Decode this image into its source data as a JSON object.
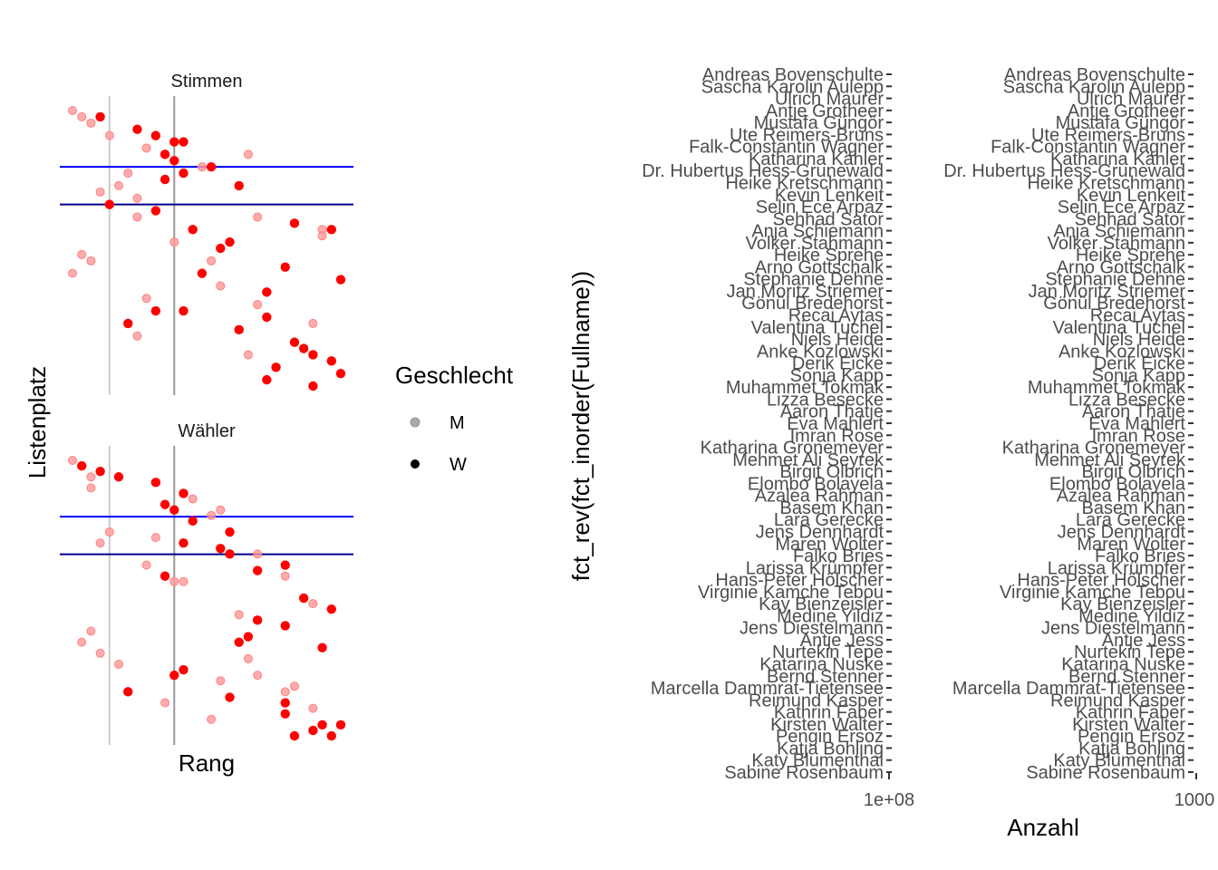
{
  "colors": {
    "M": "#ff9999",
    "W": "#ff0000",
    "line1": "#0000ff",
    "line2": "#00008b",
    "vline1": "#cccccc",
    "vline2": "#999999"
  },
  "scatter": {
    "xlabel": "Rang",
    "ylabel": "Listenplatz",
    "legend": {
      "title": "Geschlecht",
      "items": [
        {
          "label": "M",
          "key": "M"
        },
        {
          "label": "W",
          "key": "W"
        }
      ]
    },
    "panels": [
      {
        "strip": "Stimmen",
        "points": [
          {
            "x": 1,
            "y": 1,
            "g": "M"
          },
          {
            "x": 2,
            "y": 2,
            "g": "M"
          },
          {
            "x": 4,
            "y": 2,
            "g": "W"
          },
          {
            "x": 3,
            "y": 3,
            "g": "M"
          },
          {
            "x": 8,
            "y": 4,
            "g": "W"
          },
          {
            "x": 5,
            "y": 5,
            "g": "M"
          },
          {
            "x": 10,
            "y": 5,
            "g": "W"
          },
          {
            "x": 12,
            "y": 6,
            "g": "W"
          },
          {
            "x": 13,
            "y": 6,
            "g": "W"
          },
          {
            "x": 9,
            "y": 7,
            "g": "M"
          },
          {
            "x": 11,
            "y": 8,
            "g": "W"
          },
          {
            "x": 20,
            "y": 8,
            "g": "M"
          },
          {
            "x": 12,
            "y": 9,
            "g": "W"
          },
          {
            "x": 15,
            "y": 10,
            "g": "M"
          },
          {
            "x": 16,
            "y": 10,
            "g": "W"
          },
          {
            "x": 7,
            "y": 11,
            "g": "M"
          },
          {
            "x": 13,
            "y": 11,
            "g": "W"
          },
          {
            "x": 11,
            "y": 12,
            "g": "W"
          },
          {
            "x": 6,
            "y": 13,
            "g": "M"
          },
          {
            "x": 19,
            "y": 13,
            "g": "W"
          },
          {
            "x": 4,
            "y": 14,
            "g": "M"
          },
          {
            "x": 8,
            "y": 15,
            "g": "M"
          },
          {
            "x": 5,
            "y": 16,
            "g": "W"
          },
          {
            "x": 10,
            "y": 17,
            "g": "W"
          },
          {
            "x": 8,
            "y": 18,
            "g": "M"
          },
          {
            "x": 21,
            "y": 18,
            "g": "M"
          },
          {
            "x": 25,
            "y": 19,
            "g": "W"
          },
          {
            "x": 14,
            "y": 20,
            "g": "W"
          },
          {
            "x": 28,
            "y": 20,
            "g": "M"
          },
          {
            "x": 29,
            "y": 20,
            "g": "W"
          },
          {
            "x": 28,
            "y": 21,
            "g": "M"
          },
          {
            "x": 12,
            "y": 22,
            "g": "M"
          },
          {
            "x": 18,
            "y": 22,
            "g": "W"
          },
          {
            "x": 17,
            "y": 23,
            "g": "W"
          },
          {
            "x": 2,
            "y": 24,
            "g": "M"
          },
          {
            "x": 3,
            "y": 25,
            "g": "M"
          },
          {
            "x": 16,
            "y": 25,
            "g": "M"
          },
          {
            "x": 24,
            "y": 26,
            "g": "W"
          },
          {
            "x": 1,
            "y": 27,
            "g": "M"
          },
          {
            "x": 15,
            "y": 27,
            "g": "W"
          },
          {
            "x": 30,
            "y": 28,
            "g": "W"
          },
          {
            "x": 17,
            "y": 29,
            "g": "M"
          },
          {
            "x": 22,
            "y": 30,
            "g": "W"
          },
          {
            "x": 9,
            "y": 31,
            "g": "M"
          },
          {
            "x": 21,
            "y": 32,
            "g": "M"
          },
          {
            "x": 10,
            "y": 33,
            "g": "W"
          },
          {
            "x": 13,
            "y": 33,
            "g": "W"
          },
          {
            "x": 22,
            "y": 34,
            "g": "W"
          },
          {
            "x": 7,
            "y": 35,
            "g": "W"
          },
          {
            "x": 27,
            "y": 35,
            "g": "M"
          },
          {
            "x": 19,
            "y": 36,
            "g": "W"
          },
          {
            "x": 8,
            "y": 37,
            "g": "M"
          },
          {
            "x": 25,
            "y": 38,
            "g": "W"
          },
          {
            "x": 26,
            "y": 39,
            "g": "W"
          },
          {
            "x": 20,
            "y": 40,
            "g": "M"
          },
          {
            "x": 27,
            "y": 40,
            "g": "W"
          },
          {
            "x": 29,
            "y": 41,
            "g": "W"
          },
          {
            "x": 23,
            "y": 42,
            "g": "W"
          },
          {
            "x": 30,
            "y": 43,
            "g": "W"
          },
          {
            "x": 22,
            "y": 44,
            "g": "W"
          },
          {
            "x": 27,
            "y": 45,
            "g": "W"
          }
        ]
      },
      {
        "strip": "Wähler",
        "points": [
          {
            "x": 1,
            "y": 1,
            "g": "M"
          },
          {
            "x": 2,
            "y": 2,
            "g": "W"
          },
          {
            "x": 4,
            "y": 3,
            "g": "W"
          },
          {
            "x": 3,
            "y": 4,
            "g": "M"
          },
          {
            "x": 6,
            "y": 4,
            "g": "W"
          },
          {
            "x": 10,
            "y": 5,
            "g": "W"
          },
          {
            "x": 3,
            "y": 6,
            "g": "M"
          },
          {
            "x": 13,
            "y": 7,
            "g": "W"
          },
          {
            "x": 14,
            "y": 8,
            "g": "M"
          },
          {
            "x": 11,
            "y": 9,
            "g": "W"
          },
          {
            "x": 12,
            "y": 10,
            "g": "W"
          },
          {
            "x": 17,
            "y": 10,
            "g": "M"
          },
          {
            "x": 16,
            "y": 11,
            "g": "M"
          },
          {
            "x": 14,
            "y": 12,
            "g": "W"
          },
          {
            "x": 5,
            "y": 14,
            "g": "M"
          },
          {
            "x": 18,
            "y": 14,
            "g": "W"
          },
          {
            "x": 10,
            "y": 15,
            "g": "M"
          },
          {
            "x": 4,
            "y": 16,
            "g": "M"
          },
          {
            "x": 13,
            "y": 16,
            "g": "W"
          },
          {
            "x": 17,
            "y": 17,
            "g": "W"
          },
          {
            "x": 18,
            "y": 18,
            "g": "W"
          },
          {
            "x": 21,
            "y": 18,
            "g": "M"
          },
          {
            "x": 9,
            "y": 20,
            "g": "M"
          },
          {
            "x": 24,
            "y": 20,
            "g": "W"
          },
          {
            "x": 21,
            "y": 21,
            "g": "W"
          },
          {
            "x": 11,
            "y": 22,
            "g": "W"
          },
          {
            "x": 24,
            "y": 22,
            "g": "M"
          },
          {
            "x": 12,
            "y": 23,
            "g": "M"
          },
          {
            "x": 13,
            "y": 23,
            "g": "M"
          },
          {
            "x": 26,
            "y": 26,
            "g": "W"
          },
          {
            "x": 27,
            "y": 27,
            "g": "M"
          },
          {
            "x": 29,
            "y": 28,
            "g": "W"
          },
          {
            "x": 19,
            "y": 29,
            "g": "M"
          },
          {
            "x": 21,
            "y": 30,
            "g": "W"
          },
          {
            "x": 24,
            "y": 31,
            "g": "W"
          },
          {
            "x": 3,
            "y": 32,
            "g": "M"
          },
          {
            "x": 20,
            "y": 33,
            "g": "W"
          },
          {
            "x": 2,
            "y": 34,
            "g": "M"
          },
          {
            "x": 19,
            "y": 34,
            "g": "W"
          },
          {
            "x": 28,
            "y": 35,
            "g": "W"
          },
          {
            "x": 4,
            "y": 36,
            "g": "M"
          },
          {
            "x": 20,
            "y": 37,
            "g": "M"
          },
          {
            "x": 6,
            "y": 38,
            "g": "M"
          },
          {
            "x": 13,
            "y": 39,
            "g": "W"
          },
          {
            "x": 12,
            "y": 40,
            "g": "W"
          },
          {
            "x": 21,
            "y": 40,
            "g": "M"
          },
          {
            "x": 17,
            "y": 41,
            "g": "M"
          },
          {
            "x": 25,
            "y": 42,
            "g": "M"
          },
          {
            "x": 7,
            "y": 43,
            "g": "W"
          },
          {
            "x": 24,
            "y": 43,
            "g": "M"
          },
          {
            "x": 18,
            "y": 44,
            "g": "W"
          },
          {
            "x": 11,
            "y": 45,
            "g": "M"
          },
          {
            "x": 24,
            "y": 45,
            "g": "W"
          },
          {
            "x": 27,
            "y": 46,
            "g": "M"
          },
          {
            "x": 24,
            "y": 47,
            "g": "W"
          },
          {
            "x": 16,
            "y": 48,
            "g": "M"
          },
          {
            "x": 28,
            "y": 49,
            "g": "W"
          },
          {
            "x": 30,
            "y": 49,
            "g": "W"
          },
          {
            "x": 27,
            "y": 50,
            "g": "W"
          },
          {
            "x": 25,
            "y": 51,
            "g": "W"
          },
          {
            "x": 29,
            "y": 51,
            "g": "W"
          }
        ]
      }
    ]
  },
  "chart_data": [
    {
      "type": "scatter",
      "title": "",
      "facets": [
        "Stimmen",
        "Wähler"
      ],
      "xlabel": "Rang",
      "ylabel": "Listenplatz",
      "legend": {
        "title": "Geschlecht",
        "entries": [
          "M",
          "W"
        ],
        "placement": "right"
      },
      "grid": false,
      "reference_lines": {
        "horizontal": [
          10,
          16
        ],
        "vertical": [
          5,
          12
        ]
      },
      "note": ""
    },
    {
      "type": "bar",
      "panels": 2,
      "ylabel": "fct_rev(fct_inorder(Fullname))",
      "xlabel": "Anzahl",
      "x_tick_labels_panel1": [
        "1e+08"
      ],
      "x_tick_labels_panel2": [
        "1000"
      ],
      "grid": false
    }
  ],
  "names": {
    "ylabel": "fct_rev(fct_inorder(Fullname))",
    "xlabel": "Anzahl",
    "tick1": "1e+08",
    "tick2": "1000",
    "list": [
      "Andreas Bovenschulte",
      "Sascha Karolin Aulepp",
      "Ulrich Maurer",
      "Antje Grotheer",
      "Mustafa Güngör",
      "Ute Reimers-Bruns",
      "Falk-Constantin Wagner",
      "Katharina Kähler",
      "Dr. Hubertus Hess-Grunewald",
      "Heike Kretschmann",
      "Kevin Lenkeit",
      "Selin Ece Arpaz",
      "Sehhad Sator",
      "Anja Schiemann",
      "Volker Stahmann",
      "Heike Sprehe",
      "Arno Gottschalk",
      "Stephanie Dehne",
      "Jan Moritz Striemer",
      "Gönül Bredehorst",
      "Recai Aytas",
      "Valentina Tuchel",
      "Niels Heide",
      "Anke Kozlowski",
      "Derik Eicke",
      "Sonja Kapp",
      "Muhammet Tokmak",
      "Lizza Besecke",
      "Aaron Thatje",
      "Eva Mahlert",
      "Imran Rose",
      "Katharina Gronemeyer",
      "Mehmet Ali Seyrek",
      "Birgit Olbrich",
      "Elombo Bolayela",
      "Azalea Rahman",
      "Basem Khan",
      "Lara Gerecke",
      "Jens Dennhardt",
      "Maren Wolter",
      "Falko Bries",
      "Larissa Krümpfer",
      "Hans-Peter Hölscher",
      "Virginie Kamche Tebou",
      "Kay Bienzeisler",
      "Medine Yildiz",
      "Jens Diestelmann",
      "Antje Jess",
      "Nurtekin Tepe",
      "Katarina Nuske",
      "Bernd Stenner",
      "Marcella Dammrat-Tietensee",
      "Reimund Kasper",
      "Kathrin Faber",
      "Kirsten Walter",
      "Pengin Ersoz",
      "Katja Bohling",
      "Katy Blumenthal",
      "Sabine Rosenbaum"
    ]
  }
}
